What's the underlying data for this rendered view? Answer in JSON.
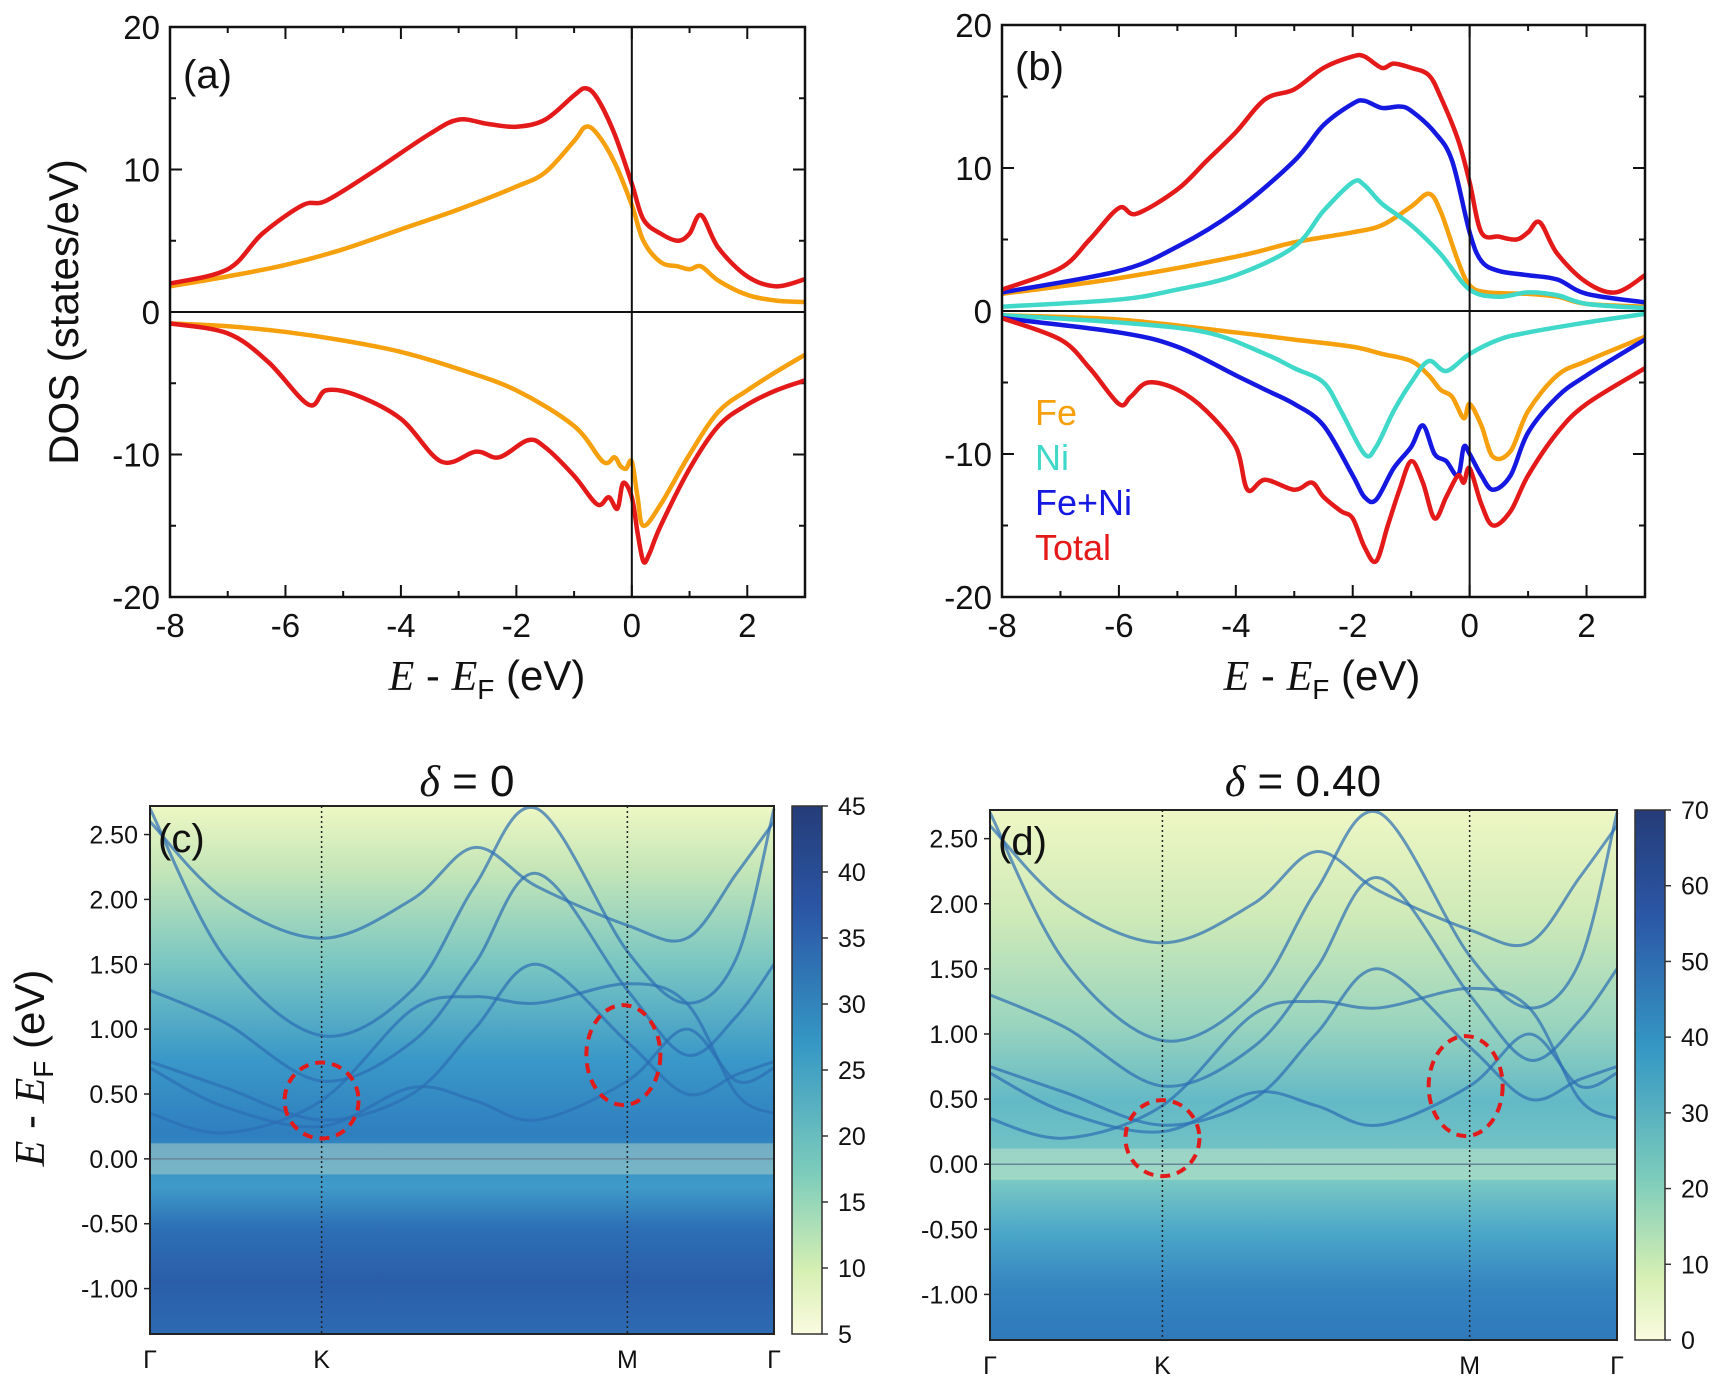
{
  "colors": {
    "Fe": "#f5a00c",
    "Ni": "#40d8c8",
    "FeNi": "#1418e0",
    "Total": "#e41a1a"
  },
  "chart_data": [
    {
      "type": "line",
      "panel_label": "(a)",
      "xlabel": {
        "prefix": "E",
        "mid": " - ",
        "main": "E",
        "sub": "F",
        "unit": " (eV)"
      },
      "ylabel": "DOS (states/eV)",
      "xlim": [
        -8,
        3
      ],
      "ylim": [
        -20,
        20
      ],
      "xticks": [
        -8,
        -6,
        -4,
        -2,
        0,
        2
      ],
      "xtick_labels": [
        "-8",
        "-6",
        "-4",
        "-2",
        "0",
        "2"
      ],
      "yticks": [
        -20,
        -10,
        0,
        10,
        20
      ],
      "ytick_labels": [
        "-20",
        "-10",
        "0",
        "10",
        "20"
      ],
      "series": [
        {
          "name": "Fe",
          "color_key": "Fe",
          "x": [
            -8,
            -7,
            -6,
            -5,
            -4,
            -3,
            -2,
            -1.5,
            -1,
            -0.8,
            -0.6,
            -0.3,
            0,
            0.2,
            0.5,
            0.8,
            1,
            1.2,
            1.5,
            2,
            2.5,
            3
          ],
          "y": [
            1.8,
            2.5,
            3.3,
            4.4,
            5.8,
            7.2,
            8.8,
            9.8,
            12,
            13,
            12.5,
            10.5,
            7.5,
            5,
            3.5,
            3.2,
            3,
            3.2,
            2.2,
            1.2,
            0.8,
            0.7
          ]
        },
        {
          "name": "Total",
          "color_key": "Total",
          "x": [
            -8,
            -7,
            -6.4,
            -5.7,
            -5.3,
            -4.5,
            -3.5,
            -3,
            -2.5,
            -2,
            -1.5,
            -1,
            -0.8,
            -0.6,
            -0.3,
            0,
            0.2,
            0.5,
            0.8,
            1,
            1.2,
            1.5,
            2,
            2.5,
            3
          ],
          "y": [
            2,
            3,
            5.5,
            7.5,
            7.8,
            9.8,
            12.5,
            13.5,
            13.2,
            13,
            13.5,
            15.2,
            15.7,
            15,
            12.5,
            9,
            6.5,
            5.5,
            5,
            5.5,
            6.8,
            4.5,
            2.5,
            1.8,
            2.3
          ]
        },
        {
          "name": "Fe",
          "color_key": "Fe",
          "x": [
            -8,
            -7,
            -6,
            -5,
            -4,
            -3,
            -2,
            -1,
            -0.5,
            -0.3,
            -0.2,
            -0.1,
            0,
            0.1,
            0.2,
            0.5,
            1,
            1.5,
            2,
            2.5,
            3
          ],
          "y": [
            -0.8,
            -1,
            -1.4,
            -2,
            -2.8,
            -4,
            -5.5,
            -8,
            -10.5,
            -10.2,
            -10.8,
            -11,
            -10.5,
            -13,
            -15,
            -13.5,
            -10,
            -7,
            -5.5,
            -4.2,
            -3
          ]
        },
        {
          "name": "Total",
          "color_key": "Total",
          "x": [
            -8,
            -7,
            -6.3,
            -5.6,
            -5.3,
            -4.8,
            -4,
            -3.3,
            -2.7,
            -2.3,
            -1.8,
            -1.5,
            -1,
            -0.6,
            -0.4,
            -0.25,
            -0.15,
            0,
            0.1,
            0.2,
            0.3,
            0.5,
            1,
            1.5,
            2,
            2.5,
            3
          ],
          "y": [
            -0.8,
            -1.5,
            -3.5,
            -6.5,
            -5.5,
            -5.8,
            -7.5,
            -10.5,
            -9.8,
            -10.2,
            -9,
            -9.5,
            -11.5,
            -13.5,
            -13,
            -13.8,
            -12,
            -13,
            -15.5,
            -17.5,
            -17,
            -15,
            -11,
            -8,
            -6.5,
            -5.5,
            -4.8
          ]
        }
      ]
    },
    {
      "type": "line",
      "panel_label": "(b)",
      "xlabel": {
        "prefix": "E",
        "mid": " - ",
        "main": "E",
        "sub": "F",
        "unit": " (eV)"
      },
      "xlim": [
        -8,
        3
      ],
      "ylim": [
        -20,
        20
      ],
      "xticks": [
        -8,
        -6,
        -4,
        -2,
        0,
        2
      ],
      "xtick_labels": [
        "-8",
        "-6",
        "-4",
        "-2",
        "0",
        "2"
      ],
      "yticks": [
        -20,
        -10,
        0,
        10,
        20
      ],
      "ytick_labels": [
        "-20",
        "-10",
        "0",
        "10",
        "20"
      ],
      "legend": [
        "Fe",
        "Ni",
        "Fe+Ni",
        "Total"
      ],
      "legend_keys": [
        "Fe",
        "Ni",
        "FeNi",
        "Total"
      ],
      "series": [
        {
          "name": "Fe",
          "color_key": "Fe",
          "x": [
            -8,
            -6,
            -4,
            -3,
            -2,
            -1.5,
            -1,
            -0.7,
            -0.5,
            -0.2,
            0,
            0.3,
            1,
            1.5,
            2,
            3
          ],
          "y": [
            1.2,
            2.3,
            3.8,
            4.8,
            5.5,
            6,
            7.3,
            8.2,
            7,
            3.5,
            1.8,
            1.3,
            1.2,
            1,
            0.5,
            0.3
          ]
        },
        {
          "name": "Ni",
          "color_key": "Ni",
          "x": [
            -8,
            -6,
            -5,
            -4,
            -3,
            -2.5,
            -2,
            -1.8,
            -1.5,
            -1,
            -0.5,
            0,
            0.5,
            1,
            1.5,
            2,
            3
          ],
          "y": [
            0.3,
            0.8,
            1.5,
            2.5,
            4.5,
            7,
            9,
            8.8,
            7.5,
            6,
            4,
            1.5,
            1,
            1.3,
            1.1,
            0.5,
            0.2
          ]
        },
        {
          "name": "Fe+Ni",
          "color_key": "FeNi",
          "x": [
            -8,
            -6,
            -5,
            -4,
            -3,
            -2.5,
            -2,
            -1.8,
            -1.5,
            -1.2,
            -1,
            -0.6,
            -0.3,
            0,
            0.2,
            0.5,
            1,
            1.5,
            2,
            3
          ],
          "y": [
            1.3,
            2.8,
            4.5,
            7,
            10.5,
            13,
            14.5,
            14.7,
            14.2,
            14.3,
            14,
            12.5,
            10.5,
            5.5,
            3.5,
            2.8,
            2.5,
            2.2,
            1.2,
            0.6
          ]
        },
        {
          "name": "Total",
          "color_key": "Total",
          "x": [
            -8,
            -7,
            -6.5,
            -6,
            -5.7,
            -5,
            -4.5,
            -4,
            -3.5,
            -3,
            -2.5,
            -2,
            -1.8,
            -1.5,
            -1.3,
            -1,
            -0.7,
            -0.5,
            -0.2,
            0,
            0.2,
            0.5,
            0.8,
            1,
            1.2,
            1.5,
            2,
            2.5,
            3
          ],
          "y": [
            1.5,
            3,
            5,
            7.2,
            6.8,
            8.5,
            10.5,
            12.5,
            14.8,
            15.5,
            17,
            17.8,
            17.8,
            17,
            17.3,
            17,
            16.5,
            15,
            12,
            9,
            5.5,
            5.2,
            5,
            5.5,
            6.2,
            4,
            2,
            1.3,
            2.5
          ]
        },
        {
          "name": "Fe",
          "color_key": "Fe",
          "x": [
            -8,
            -6,
            -4,
            -3,
            -2,
            -1.5,
            -1,
            -0.7,
            -0.5,
            -0.3,
            -0.1,
            0,
            0.2,
            0.4,
            0.7,
            1,
            1.5,
            2,
            3
          ],
          "y": [
            -0.3,
            -0.6,
            -1.5,
            -2,
            -2.5,
            -3,
            -3.5,
            -4.5,
            -5.5,
            -6,
            -7.5,
            -6.5,
            -8,
            -10.2,
            -9.8,
            -7,
            -4.5,
            -3.5,
            -1.8
          ]
        },
        {
          "name": "Ni",
          "color_key": "Ni",
          "x": [
            -8,
            -6,
            -4.5,
            -3.5,
            -3,
            -2.5,
            -2.2,
            -1.8,
            -1.6,
            -1.3,
            -1,
            -0.7,
            -0.4,
            0,
            0.5,
            1,
            2,
            3
          ],
          "y": [
            -0.3,
            -0.8,
            -1.5,
            -3,
            -4,
            -5,
            -7,
            -10,
            -9.5,
            -7,
            -5,
            -3.5,
            -4.2,
            -3,
            -2,
            -1.5,
            -0.8,
            -0.2
          ]
        },
        {
          "name": "Fe+Ni",
          "color_key": "FeNi",
          "x": [
            -8,
            -6,
            -5,
            -4,
            -3.5,
            -3,
            -2.5,
            -2,
            -1.8,
            -1.6,
            -1.3,
            -1,
            -0.8,
            -0.6,
            -0.4,
            -0.2,
            -0.1,
            0,
            0.2,
            0.4,
            0.7,
            1,
            1.5,
            2,
            3
          ],
          "y": [
            -0.5,
            -1.5,
            -2.5,
            -4.5,
            -5.5,
            -6.5,
            -8,
            -11.5,
            -13,
            -13.2,
            -11,
            -9.5,
            -8,
            -10,
            -10.5,
            -11.5,
            -9.5,
            -10,
            -11.5,
            -12.5,
            -11.5,
            -8.5,
            -6,
            -4.5,
            -2
          ]
        },
        {
          "name": "Total",
          "color_key": "Total",
          "x": [
            -8,
            -7,
            -6.5,
            -6,
            -5.8,
            -5.5,
            -5,
            -4.5,
            -4,
            -3.8,
            -3.5,
            -3,
            -2.7,
            -2.5,
            -2.2,
            -2,
            -1.8,
            -1.6,
            -1.4,
            -1.2,
            -1,
            -0.8,
            -0.6,
            -0.4,
            -0.2,
            -0.1,
            0,
            0.2,
            0.4,
            0.7,
            1,
            1.5,
            2,
            3
          ],
          "y": [
            -0.5,
            -2,
            -4,
            -6.5,
            -6,
            -5,
            -5.5,
            -7,
            -9.5,
            -12.5,
            -11.8,
            -12.5,
            -12,
            -13,
            -14,
            -14.5,
            -16.5,
            -17.5,
            -15,
            -12.5,
            -10.5,
            -12,
            -14.5,
            -13,
            -11.5,
            -12,
            -11,
            -13.5,
            -15,
            -14,
            -11.5,
            -8.5,
            -6.5,
            -4
          ]
        }
      ]
    },
    {
      "type": "heatmap",
      "panel_label": "(c)",
      "title_var": "δ",
      "title_rest": " = 0",
      "ylabel": {
        "main": "E",
        "mid": " - ",
        "sub_main": "E",
        "sub": "F",
        "unit": " (eV)"
      },
      "ylim": [
        -1.35,
        2.72
      ],
      "yticks": [
        2.5,
        2.0,
        1.5,
        1.0,
        0.5,
        0.0,
        -0.5,
        -1.0
      ],
      "ytick_labels": [
        "2.50",
        "2.00",
        "1.50",
        "1.00",
        "0.50",
        "0.00",
        "-0.50",
        "-1.00"
      ],
      "kpoints": [
        "Γ",
        "K",
        "M",
        "Γ"
      ],
      "colorbar_ticks": [
        "45",
        "40",
        "35",
        "30",
        "25",
        "20",
        "15",
        "10",
        "5"
      ],
      "highlights": [
        {
          "k": "K",
          "energy": 0.45
        },
        {
          "k": "M",
          "energy": 0.8
        }
      ]
    },
    {
      "type": "heatmap",
      "panel_label": "(d)",
      "title_var": "δ",
      "title_rest": " = 0.40",
      "ylim": [
        -1.35,
        2.72
      ],
      "yticks": [
        2.5,
        2.0,
        1.5,
        1.0,
        0.5,
        0.0,
        -0.5,
        -1.0
      ],
      "ytick_labels": [
        "2.50",
        "2.00",
        "1.50",
        "1.00",
        "0.50",
        "0.00",
        "-0.50",
        "-1.00"
      ],
      "kpoints": [
        "Γ",
        "K",
        "M",
        "Γ"
      ],
      "colorbar_ticks": [
        "70",
        "60",
        "50",
        "40",
        "30",
        "20",
        "10",
        "0"
      ],
      "highlights": [
        {
          "k": "K",
          "energy": 0.2
        },
        {
          "k": "M",
          "energy": 0.6
        }
      ]
    }
  ]
}
